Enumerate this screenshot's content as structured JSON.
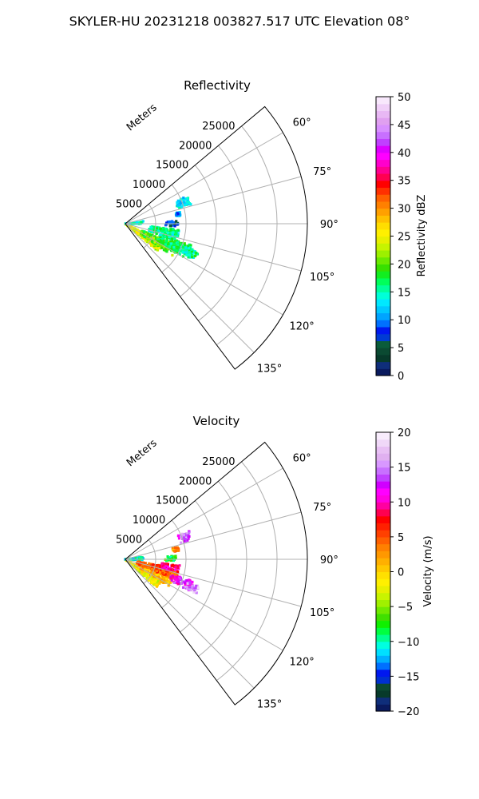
{
  "suptitle": "SKYLER-HU  20231218  003827.517 UTC Elevation 08°",
  "chart_data": [
    {
      "type": "polar-wedge",
      "title": "Reflectivity",
      "r_axis_label": "Meters",
      "r_ticks": [
        5000,
        10000,
        15000,
        20000,
        25000
      ],
      "r_tick_labels": [
        "5000",
        "10000",
        "15000",
        "20000",
        "25000"
      ],
      "r_range": [
        0,
        30000
      ],
      "theta_range_deg": [
        50,
        143
      ],
      "theta_ticks": [
        60,
        75,
        90,
        105,
        120,
        135
      ],
      "theta_tick_labels": [
        "60°",
        "75°",
        "90°",
        "105°",
        "120°",
        "135°"
      ],
      "grid": true,
      "colorbar": {
        "label": "Reflectivity dBZ",
        "range": [
          0,
          50
        ],
        "ticks": [
          0,
          5,
          10,
          15,
          20,
          25,
          30,
          35,
          40,
          45,
          50
        ],
        "tick_labels": [
          "0",
          "5",
          "10",
          "15",
          "20",
          "25",
          "30",
          "35",
          "40",
          "45",
          "50"
        ]
      },
      "echo_regions": [
        {
          "az": [
            117,
            130
          ],
          "range_m": [
            0,
            7000
          ],
          "value": 24
        },
        {
          "az": [
            112,
            124
          ],
          "range_m": [
            3000,
            9500
          ],
          "value": 20
        },
        {
          "az": [
            108,
            120
          ],
          "range_m": [
            6000,
            11500
          ],
          "value": 17
        },
        {
          "az": [
            110,
            118
          ],
          "range_m": [
            9500,
            13000
          ],
          "value": 16
        },
        {
          "az": [
            96,
            108
          ],
          "range_m": [
            4000,
            9000
          ],
          "value": 16
        },
        {
          "az": [
            87,
            93
          ],
          "range_m": [
            6500,
            9000
          ],
          "value": 7
        },
        {
          "az": [
            78,
            82
          ],
          "range_m": [
            8500,
            9200
          ],
          "value": 11
        },
        {
          "az": [
            66,
            74
          ],
          "range_m": [
            9000,
            11500
          ],
          "value": 13
        },
        {
          "az": [
            82,
            91
          ],
          "range_m": [
            0,
            3000
          ],
          "value": 14
        }
      ]
    },
    {
      "type": "polar-wedge",
      "title": "Velocity",
      "r_axis_label": "Meters",
      "r_ticks": [
        5000,
        10000,
        15000,
        20000,
        25000
      ],
      "r_tick_labels": [
        "5000",
        "10000",
        "15000",
        "20000",
        "25000"
      ],
      "r_range": [
        0,
        30000
      ],
      "theta_range_deg": [
        50,
        143
      ],
      "theta_ticks": [
        60,
        75,
        90,
        105,
        120,
        135
      ],
      "theta_tick_labels": [
        "60°",
        "75°",
        "90°",
        "105°",
        "120°",
        "135°"
      ],
      "grid": true,
      "colorbar": {
        "label": "Velocity (m/s)",
        "range": [
          -20,
          20
        ],
        "ticks": [
          -20,
          -15,
          -10,
          -5,
          0,
          5,
          10,
          15,
          20
        ],
        "tick_labels": [
          "−20",
          "−15",
          "−10",
          "−5",
          "0",
          "5",
          "10",
          "15",
          "20"
        ]
      },
      "echo_regions": [
        {
          "az": [
            120,
            132
          ],
          "range_m": [
            0,
            7000
          ],
          "value": -2
        },
        {
          "az": [
            110,
            122
          ],
          "range_m": [
            2000,
            8500
          ],
          "value": 1
        },
        {
          "az": [
            100,
            112
          ],
          "range_m": [
            2000,
            9000
          ],
          "value": 5
        },
        {
          "az": [
            96,
            104
          ],
          "range_m": [
            6000,
            9000
          ],
          "value": 9
        },
        {
          "az": [
            108,
            116
          ],
          "range_m": [
            8000,
            12000
          ],
          "value": 12
        },
        {
          "az": [
            110,
            116
          ],
          "range_m": [
            11000,
            13000
          ],
          "value": 16
        },
        {
          "az": [
            86,
            92
          ],
          "range_m": [
            6500,
            8500
          ],
          "value": -8
        },
        {
          "az": [
            77,
            81
          ],
          "range_m": [
            8000,
            9000
          ],
          "value": 3
        },
        {
          "az": [
            66,
            74
          ],
          "range_m": [
            9500,
            11500
          ],
          "value": 14
        },
        {
          "az": [
            82,
            92
          ],
          "range_m": [
            0,
            3000
          ],
          "value": -10
        }
      ]
    }
  ]
}
